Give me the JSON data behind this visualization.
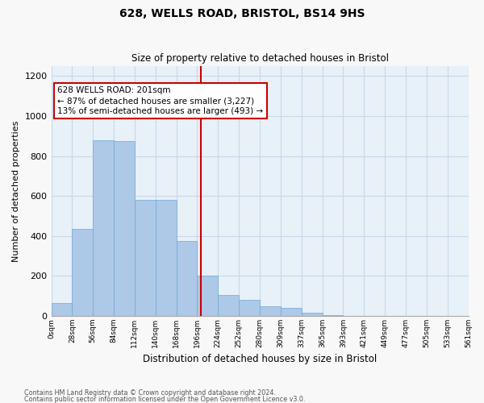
{
  "title1": "628, WELLS ROAD, BRISTOL, BS14 9HS",
  "title2": "Size of property relative to detached houses in Bristol",
  "xlabel": "Distribution of detached houses by size in Bristol",
  "ylabel": "Number of detached properties",
  "bar_values": [
    65,
    435,
    880,
    875,
    580,
    580,
    375,
    200,
    105,
    80,
    50,
    40,
    15,
    5,
    2,
    1,
    0,
    0,
    0,
    0
  ],
  "tick_labels": [
    "0sqm",
    "28sqm",
    "56sqm",
    "84sqm",
    "112sqm",
    "140sqm",
    "168sqm",
    "196sqm",
    "224sqm",
    "252sqm",
    "280sqm",
    "309sqm",
    "337sqm",
    "365sqm",
    "393sqm",
    "421sqm",
    "449sqm",
    "477sqm",
    "505sqm",
    "533sqm",
    "561sqm"
  ],
  "bar_color": "#aec8e8",
  "bar_edge_color": "#6aaad4",
  "vline_color": "#cc0000",
  "annotation_title": "628 WELLS ROAD: 201sqm",
  "annotation_line1": "← 87% of detached houses are smaller (3,227)",
  "annotation_line2": "13% of semi-detached houses are larger (493) →",
  "annotation_box_color": "#cc0000",
  "ylim": [
    0,
    1250
  ],
  "yticks": [
    0,
    200,
    400,
    600,
    800,
    1000,
    1200
  ],
  "grid_color": "#c8d8e8",
  "bg_color": "#e8f0f8",
  "fig_bg_color": "#f8f8f8",
  "footer1": "Contains HM Land Registry data © Crown copyright and database right 2024.",
  "footer2": "Contains public sector information licensed under the Open Government Licence v3.0."
}
